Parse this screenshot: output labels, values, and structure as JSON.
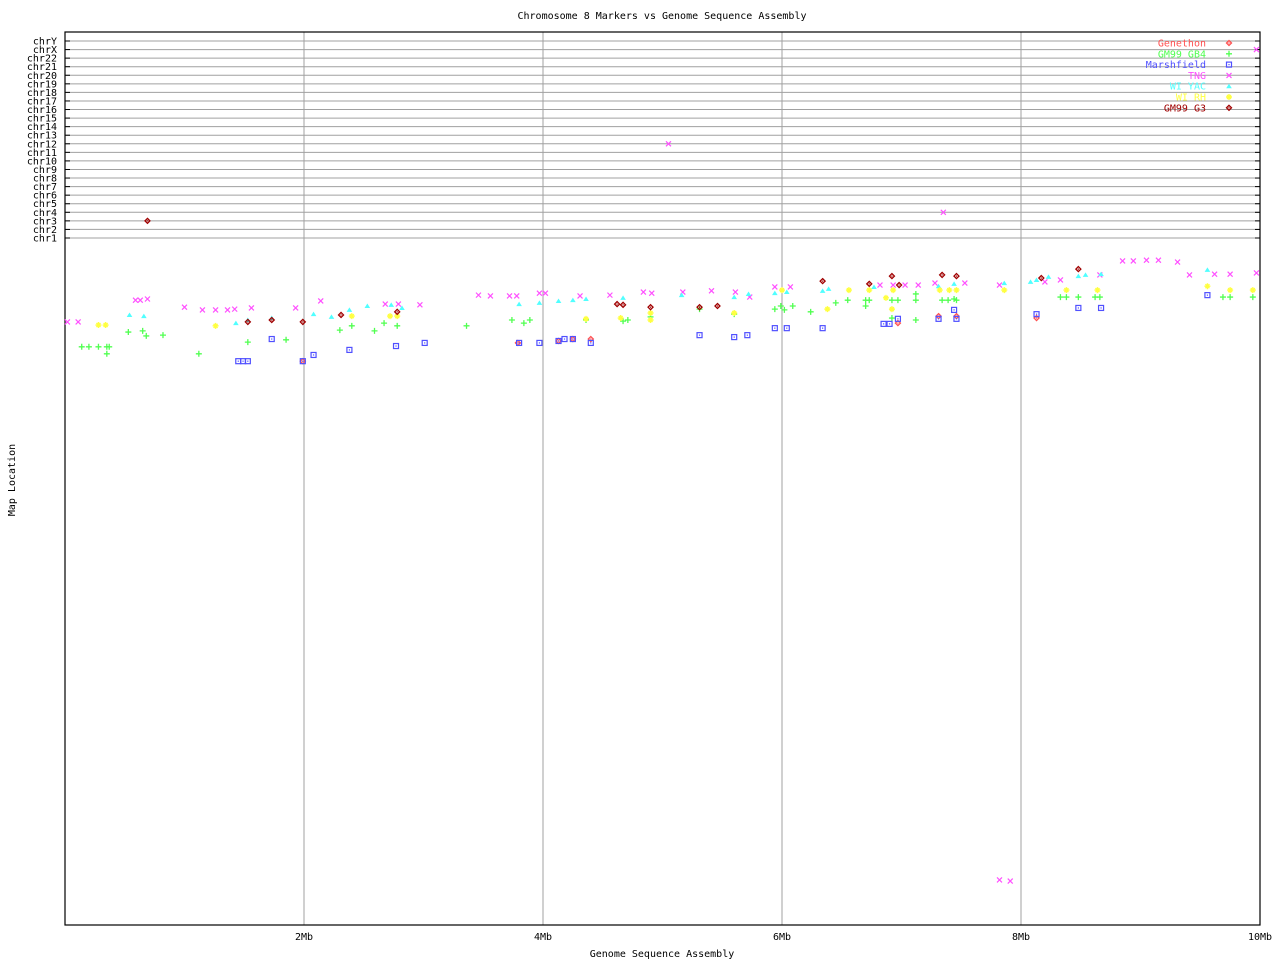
{
  "chart_data": {
    "type": "scatter",
    "title": "Chromosome 8 Markers vs Genome Sequence Assembly",
    "xlabel": "Genome Sequence Assembly",
    "ylabel": "Map Location",
    "xlim": [
      0,
      10
    ],
    "x_unit": "Mb",
    "x_ticks": [
      "2Mb",
      "4Mb",
      "6Mb",
      "8Mb",
      "10Mb"
    ],
    "x_tick_values": [
      2,
      4,
      6,
      8,
      10
    ],
    "y_categories": [
      "chrY",
      "chrX",
      "chr22",
      "chr21",
      "chr20",
      "chr19",
      "chr18",
      "chr17",
      "chr16",
      "chr15",
      "chr14",
      "chr13",
      "chr12",
      "chr11",
      "chr10",
      "chr9",
      "chr8",
      "chr7",
      "chr6",
      "chr5",
      "chr4",
      "chr3",
      "chr2",
      "chr1"
    ],
    "chr8_map_range": [
      0,
      175
    ],
    "grid": true,
    "legend_position": "top-right",
    "series": [
      {
        "name": "Genethon",
        "marker": "diamond",
        "color": "#ff5050",
        "points": [
          [
            4.4,
            24.2
          ],
          [
            6.97,
            20.1
          ],
          [
            7.31,
            18.3
          ],
          [
            7.46,
            18.3
          ],
          [
            8.13,
            18.8
          ],
          [
            1.99,
            29.9
          ],
          [
            3.79,
            25.2
          ],
          [
            4.13,
            24.7
          ],
          [
            4.25,
            24.2
          ]
        ]
      },
      {
        "name": "GM99 GB4",
        "marker": "plus",
        "color": "#50ff50",
        "points": [
          [
            0.14,
            26.2
          ],
          [
            0.2,
            26.2
          ],
          [
            0.28,
            26.2
          ],
          [
            0.35,
            26.2
          ],
          [
            0.37,
            26.2
          ],
          [
            0.35,
            28.0
          ],
          [
            0.53,
            22.4
          ],
          [
            0.65,
            22.1
          ],
          [
            0.68,
            23.4
          ],
          [
            0.82,
            23.2
          ],
          [
            1.12,
            28.0
          ],
          [
            1.53,
            25.0
          ],
          [
            1.85,
            24.4
          ],
          [
            2.3,
            21.9
          ],
          [
            2.4,
            20.8
          ],
          [
            2.59,
            22.1
          ],
          [
            2.67,
            20.1
          ],
          [
            2.78,
            20.8
          ],
          [
            3.36,
            20.8
          ],
          [
            3.74,
            19.3
          ],
          [
            3.84,
            20.1
          ],
          [
            3.89,
            19.3
          ],
          [
            4.36,
            19.3
          ],
          [
            4.67,
            19.6
          ],
          [
            4.71,
            19.3
          ],
          [
            4.9,
            18.5
          ],
          [
            5.31,
            16.5
          ],
          [
            5.6,
            17.8
          ],
          [
            5.94,
            16.5
          ],
          [
            5.99,
            15.7
          ],
          [
            6.02,
            16.7
          ],
          [
            6.09,
            15.7
          ],
          [
            6.24,
            17.2
          ],
          [
            6.45,
            14.9
          ],
          [
            6.55,
            14.2
          ],
          [
            6.7,
            14.2
          ],
          [
            6.7,
            15.7
          ],
          [
            6.73,
            14.2
          ],
          [
            6.92,
            14.2
          ],
          [
            6.97,
            14.2
          ],
          [
            6.92,
            18.8
          ],
          [
            7.12,
            12.6
          ],
          [
            7.12,
            14.2
          ],
          [
            7.12,
            19.3
          ],
          [
            7.34,
            14.2
          ],
          [
            7.39,
            14.2
          ],
          [
            7.44,
            13.9
          ],
          [
            7.46,
            14.2
          ],
          [
            8.33,
            13.4
          ],
          [
            8.38,
            13.4
          ],
          [
            8.48,
            13.4
          ],
          [
            8.62,
            13.4
          ],
          [
            8.66,
            13.4
          ],
          [
            9.69,
            13.4
          ],
          [
            9.75,
            13.4
          ],
          [
            9.94,
            13.4
          ]
        ]
      },
      {
        "name": "Marshfield",
        "marker": "square",
        "color": "#5050ff",
        "points": [
          [
            1.45,
            29.9
          ],
          [
            1.49,
            29.9
          ],
          [
            1.53,
            29.9
          ],
          [
            1.73,
            24.2
          ],
          [
            1.99,
            29.9
          ],
          [
            2.08,
            28.3
          ],
          [
            2.38,
            27.0
          ],
          [
            2.77,
            26.0
          ],
          [
            3.01,
            25.2
          ],
          [
            3.8,
            25.2
          ],
          [
            3.97,
            25.2
          ],
          [
            4.13,
            24.7
          ],
          [
            4.18,
            24.2
          ],
          [
            4.25,
            24.2
          ],
          [
            4.4,
            25.2
          ],
          [
            5.31,
            23.2
          ],
          [
            5.6,
            23.7
          ],
          [
            5.71,
            23.2
          ],
          [
            5.94,
            21.4
          ],
          [
            6.04,
            21.4
          ],
          [
            6.34,
            21.4
          ],
          [
            6.85,
            20.3
          ],
          [
            6.9,
            20.3
          ],
          [
            6.97,
            19.0
          ],
          [
            7.31,
            19.0
          ],
          [
            7.44,
            16.7
          ],
          [
            7.46,
            19.0
          ],
          [
            8.13,
            17.8
          ],
          [
            8.48,
            16.2
          ],
          [
            8.67,
            16.2
          ],
          [
            9.56,
            12.9
          ]
        ]
      },
      {
        "name": "TNG",
        "marker": "cross",
        "color": "#ff50ff",
        "points": [
          [
            0.02,
            19.8
          ],
          [
            0.11,
            19.8
          ],
          [
            0.59,
            14.2
          ],
          [
            0.63,
            14.2
          ],
          [
            0.69,
            13.9
          ],
          [
            1.0,
            16.0
          ],
          [
            1.15,
            16.7
          ],
          [
            1.26,
            16.7
          ],
          [
            1.36,
            16.7
          ],
          [
            1.42,
            16.5
          ],
          [
            1.56,
            16.2
          ],
          [
            1.93,
            16.2
          ],
          [
            2.14,
            14.4
          ],
          [
            2.68,
            15.2
          ],
          [
            2.79,
            15.2
          ],
          [
            2.97,
            15.4
          ],
          [
            3.46,
            12.9
          ],
          [
            3.56,
            13.1
          ],
          [
            3.72,
            13.1
          ],
          [
            3.78,
            13.1
          ],
          [
            3.97,
            12.4
          ],
          [
            4.02,
            12.4
          ],
          [
            4.31,
            13.1
          ],
          [
            4.56,
            12.9
          ],
          [
            4.84,
            12.1
          ],
          [
            4.91,
            12.4
          ],
          [
            5.17,
            12.1
          ],
          [
            5.41,
            11.8
          ],
          [
            5.61,
            12.1
          ],
          [
            5.73,
            13.4
          ],
          [
            5.94,
            10.8
          ],
          [
            6.07,
            10.8
          ],
          [
            6.82,
            10.3
          ],
          [
            6.93,
            10.3
          ],
          [
            7.03,
            10.3
          ],
          [
            7.14,
            10.3
          ],
          [
            7.28,
            9.8
          ],
          [
            7.53,
            9.8
          ],
          [
            7.82,
            10.3
          ],
          [
            8.2,
            9.5
          ],
          [
            8.33,
            9.0
          ],
          [
            8.66,
            7.7
          ],
          [
            8.85,
            4.1
          ],
          [
            8.94,
            4.1
          ],
          [
            9.05,
            3.9
          ],
          [
            9.15,
            3.9
          ],
          [
            9.31,
            4.4
          ],
          [
            9.41,
            7.7
          ],
          [
            9.62,
            7.5
          ],
          [
            9.75,
            7.5
          ],
          [
            9.97,
            7.2
          ],
          [
            7.82,
            163.4
          ],
          [
            7.91,
            163.7
          ],
          [
            5.05,
            "chr12"
          ],
          [
            7.35,
            "chr4"
          ],
          [
            9.97,
            "chrX"
          ]
        ]
      },
      {
        "name": "WI YAC",
        "marker": "triangle",
        "color": "#50ffff",
        "points": [
          [
            0.54,
            18.0
          ],
          [
            0.66,
            18.3
          ],
          [
            1.43,
            20.1
          ],
          [
            1.53,
            19.3
          ],
          [
            1.73,
            18.8
          ],
          [
            2.08,
            17.8
          ],
          [
            2.23,
            18.5
          ],
          [
            2.38,
            16.7
          ],
          [
            2.53,
            15.7
          ],
          [
            2.73,
            15.4
          ],
          [
            2.82,
            16.2
          ],
          [
            3.8,
            15.2
          ],
          [
            3.97,
            14.9
          ],
          [
            4.13,
            14.4
          ],
          [
            4.25,
            14.2
          ],
          [
            4.36,
            13.9
          ],
          [
            4.67,
            13.6
          ],
          [
            5.16,
            12.9
          ],
          [
            5.6,
            13.4
          ],
          [
            5.72,
            12.6
          ],
          [
            5.94,
            12.4
          ],
          [
            6.04,
            12.1
          ],
          [
            6.34,
            11.8
          ],
          [
            6.39,
            11.3
          ],
          [
            6.77,
            10.8
          ],
          [
            7.31,
            10.6
          ],
          [
            7.44,
            10.0
          ],
          [
            7.86,
            9.8
          ],
          [
            8.08,
            9.5
          ],
          [
            8.13,
            9.0
          ],
          [
            8.23,
            8.2
          ],
          [
            8.48,
            8.0
          ],
          [
            8.54,
            7.7
          ],
          [
            8.67,
            7.5
          ],
          [
            9.56,
            6.4
          ]
        ]
      },
      {
        "name": "WI RH",
        "marker": "star",
        "color": "#ffff40",
        "points": [
          [
            0.28,
            20.6
          ],
          [
            0.34,
            20.6
          ],
          [
            1.26,
            20.8
          ],
          [
            2.4,
            18.3
          ],
          [
            2.72,
            18.3
          ],
          [
            2.78,
            18.3
          ],
          [
            4.36,
            19.0
          ],
          [
            4.65,
            18.8
          ],
          [
            4.9,
            17.5
          ],
          [
            4.9,
            19.3
          ],
          [
            5.6,
            17.5
          ],
          [
            6.0,
            11.6
          ],
          [
            6.38,
            16.5
          ],
          [
            6.56,
            11.6
          ],
          [
            6.73,
            11.6
          ],
          [
            6.93,
            11.6
          ],
          [
            6.87,
            13.6
          ],
          [
            6.92,
            16.5
          ],
          [
            7.32,
            11.6
          ],
          [
            7.4,
            11.6
          ],
          [
            7.46,
            11.6
          ],
          [
            7.86,
            11.6
          ],
          [
            8.38,
            11.6
          ],
          [
            8.64,
            11.6
          ],
          [
            9.56,
            10.6
          ],
          [
            9.75,
            11.6
          ],
          [
            9.94,
            11.6
          ]
        ]
      },
      {
        "name": "GM99 G3",
        "marker": "diamond",
        "color": "#a00000",
        "points": [
          [
            0.69,
            "chr3"
          ],
          [
            1.53,
            19.8
          ],
          [
            1.73,
            19.3
          ],
          [
            1.99,
            19.8
          ],
          [
            2.31,
            18.0
          ],
          [
            2.78,
            17.2
          ],
          [
            4.62,
            15.2
          ],
          [
            4.67,
            15.4
          ],
          [
            4.9,
            16.0
          ],
          [
            5.31,
            16.0
          ],
          [
            5.46,
            15.7
          ],
          [
            6.34,
            9.3
          ],
          [
            6.73,
            10.0
          ],
          [
            6.92,
            8.0
          ],
          [
            6.98,
            10.3
          ],
          [
            7.34,
            7.7
          ],
          [
            7.46,
            8.0
          ],
          [
            8.17,
            8.5
          ],
          [
            8.48,
            6.2
          ]
        ]
      }
    ]
  }
}
